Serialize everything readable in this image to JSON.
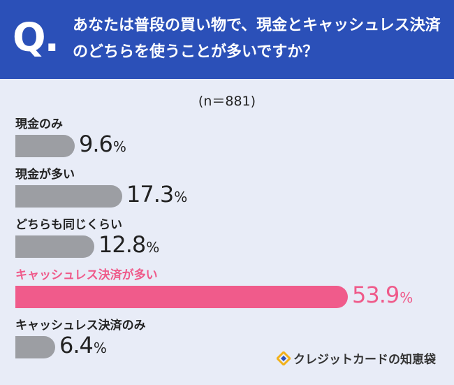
{
  "header": {
    "q_mark": "Q.",
    "question": "あなたは普段の買い物で、現金とキャッシュレス決済のどちらを使うことが多いですか？"
  },
  "sample_label": "(n＝881)",
  "brand": {
    "name": "クレジットカードの知恵袋"
  },
  "colors": {
    "header": "#2b50b8",
    "background": "#e8ecf7",
    "bar": "#9c9ea3",
    "highlight": "#f05b8b"
  },
  "chart_data": {
    "type": "bar",
    "orientation": "horizontal",
    "categories": [
      "現金のみ",
      "現金が多い",
      "どちらも同じくらい",
      "キャッシュレス決済が多い",
      "キャッシュレス決済のみ"
    ],
    "values": [
      9.6,
      17.3,
      12.8,
      53.9,
      6.4
    ],
    "value_labels": [
      "9.6",
      "17.3",
      "12.8",
      "53.9",
      "6.4"
    ],
    "unit": "%",
    "highlight_index": 3,
    "xlim": [
      0,
      100
    ],
    "grid": false,
    "legend": "none"
  }
}
